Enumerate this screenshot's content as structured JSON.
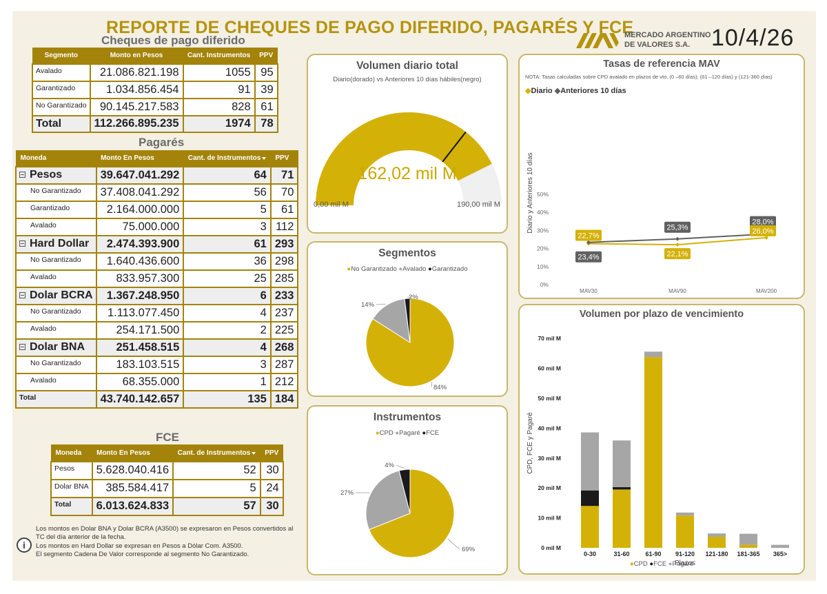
{
  "header": {
    "title": "REPORTE DE CHEQUES DE PAGO DIFERIDO, PAGARÉS Y FCE",
    "company_line1": "MERCADO ARGENTINO",
    "company_line2": "DE VALORES S.A.",
    "date": "10/4/26"
  },
  "cheques": {
    "title": "Cheques de pago diferido",
    "headers": [
      "Segmento",
      "Monto en Pesos",
      "Cant. Instrumentos",
      "PPV"
    ],
    "rows": [
      {
        "segmento": "Avalado",
        "monto": "21.086.821.198",
        "cant": "1055",
        "ppv": "95"
      },
      {
        "segmento": "Garantizado",
        "monto": "1.034.856.454",
        "cant": "91",
        "ppv": "39"
      },
      {
        "segmento": "No Garantizado",
        "monto": "90.145.217.583",
        "cant": "828",
        "ppv": "61"
      }
    ],
    "total": {
      "label": "Total",
      "monto": "112.266.895.235",
      "cant": "1974",
      "ppv": "78"
    }
  },
  "pagares": {
    "title": "Pagarés",
    "headers": [
      "Moneda",
      "Monto En Pesos",
      "Cant. de Instrumentos",
      "PPV"
    ],
    "groups": [
      {
        "name": "Pesos",
        "monto": "39.647.041.292",
        "cant": "64",
        "ppv": "71",
        "rows": [
          {
            "label": "No Garantizado",
            "monto": "37.408.041.292",
            "cant": "56",
            "ppv": "70"
          },
          {
            "label": "Garantizado",
            "monto": "2.164.000.000",
            "cant": "5",
            "ppv": "61"
          },
          {
            "label": "Avalado",
            "monto": "75.000.000",
            "cant": "3",
            "ppv": "112"
          }
        ]
      },
      {
        "name": "Hard Dollar",
        "monto": "2.474.393.900",
        "cant": "61",
        "ppv": "293",
        "rows": [
          {
            "label": "No Garantizado",
            "monto": "1.640.436.600",
            "cant": "36",
            "ppv": "298"
          },
          {
            "label": "Avalado",
            "monto": "833.957.300",
            "cant": "25",
            "ppv": "285"
          }
        ]
      },
      {
        "name": "Dolar BCRA",
        "monto": "1.367.248.950",
        "cant": "6",
        "ppv": "233",
        "rows": [
          {
            "label": "No Garantizado",
            "monto": "1.113.077.450",
            "cant": "4",
            "ppv": "237"
          },
          {
            "label": "Avalado",
            "monto": "254.171.500",
            "cant": "2",
            "ppv": "225"
          }
        ]
      },
      {
        "name": "Dolar BNA",
        "monto": "251.458.515",
        "cant": "4",
        "ppv": "268",
        "rows": [
          {
            "label": "No Garantizado",
            "monto": "183.103.515",
            "cant": "3",
            "ppv": "287"
          },
          {
            "label": "Avalado",
            "monto": "68.355.000",
            "cant": "1",
            "ppv": "212"
          }
        ]
      }
    ],
    "total": {
      "label": "Total",
      "monto": "43.740.142.657",
      "cant": "135",
      "ppv": "184"
    }
  },
  "fce": {
    "title": "FCE",
    "headers": [
      "Moneda",
      "Monto En Pesos",
      "Cant. de Instrumentos",
      "PPV"
    ],
    "rows": [
      {
        "label": "Pesos",
        "monto": "5.628.040.416",
        "cant": "52",
        "ppv": "30"
      },
      {
        "label": "Dolar BNA",
        "monto": "385.584.417",
        "cant": "5",
        "ppv": "24"
      }
    ],
    "total": {
      "label": "Total",
      "monto": "6.013.624.833",
      "cant": "57",
      "ppv": "30"
    }
  },
  "notes": {
    "lines": [
      "Los montos en Dolar BNA y Dolar BCRA (A3500) se expresaron en Pesos convertidos al",
      "TC del día anterior de la fecha.",
      "Los montos en Hard Dollar se expresan en Pesos a Dólar Com. A3500.",
      "El segmento Cadena De Valor corresponde al segmento No Garantizado."
    ],
    "info_icon": "i"
  },
  "colors": {
    "gold": "#d4b106",
    "gray": "#a6a6a6",
    "black": "#1a1a1a",
    "dark_label": "#606060",
    "header_gold": "#a3830a"
  },
  "chart_data": [
    {
      "id": "volumen-diario",
      "type": "gauge",
      "title": "Volumen diario total",
      "subtitle": "Diario(dorado) vs Anteriores 10 días hábiles(negro)",
      "value": 162.02,
      "target": 135,
      "min": 0,
      "max": 190,
      "value_label": "162,02 mil M",
      "min_label": "0,00 mil M",
      "max_label": "190,00 mil M"
    },
    {
      "id": "segmentos",
      "type": "pie",
      "title": "Segmentos",
      "legend": [
        "No Garantizado",
        "Avalado",
        "Garantizado"
      ],
      "slices": [
        {
          "name": "No Garantizado",
          "value": 84,
          "label": "84%"
        },
        {
          "name": "Avalado",
          "value": 14,
          "label": "14%"
        },
        {
          "name": "Garantizado",
          "value": 2,
          "label": "2%"
        }
      ]
    },
    {
      "id": "instrumentos",
      "type": "pie",
      "title": "Instrumentos",
      "legend": [
        "CPD",
        "Pagaré",
        "FCE"
      ],
      "slices": [
        {
          "name": "CPD",
          "value": 69,
          "label": "69%"
        },
        {
          "name": "Pagaré",
          "value": 27,
          "label": "27%"
        },
        {
          "name": "FCE",
          "value": 4,
          "label": "4%"
        }
      ]
    },
    {
      "id": "tasas",
      "type": "line",
      "title": "Tasas de referencia MAV",
      "note": "NOTA: Tasas calculadas sobre CPD avalado en plazos de vto. (0 –60 días); (61 –120 días) y (121-360 días)",
      "categories": [
        "MAV30",
        "MAV90",
        "MAV200"
      ],
      "ylabel": "Diario y Anteriores 10 días",
      "yticks": [
        "0%",
        "10%",
        "20%",
        "30%",
        "40%",
        "50%"
      ],
      "ylim": [
        0,
        50
      ],
      "legend": "top-left",
      "series": [
        {
          "name": "Diario",
          "values": [
            22.7,
            22.1,
            26.0
          ],
          "labels": [
            "22,7%",
            "22,1%",
            "26,0%"
          ]
        },
        {
          "name": "Anteriores 10 días",
          "values": [
            23.4,
            25.3,
            28.0
          ],
          "labels": [
            "23,4%",
            "25,3%",
            "28,0%"
          ]
        }
      ]
    },
    {
      "id": "plazos",
      "type": "bar",
      "stacked": true,
      "title": "Volumen por plazo de vencimiento",
      "categories": [
        "0-30",
        "31-60",
        "61-90",
        "91-120",
        "121-180",
        "181-365",
        "365>"
      ],
      "xlabel": "Plazos",
      "ylabel": "CPD, FCE y Pagaré",
      "yticks": [
        "0 mil M",
        "10 mil M",
        "20 mil M",
        "30 mil M",
        "40 mil M",
        "50 mil M",
        "60 mil M",
        "70 mil M"
      ],
      "ylim": [
        0,
        70
      ],
      "legend_items": [
        "CPD",
        "FCE",
        "Pagaré"
      ],
      "series": [
        {
          "name": "CPD",
          "values": [
            14.0,
            19.5,
            63.8,
            10.8,
            3.7,
            1.0,
            0
          ]
        },
        {
          "name": "FCE",
          "values": [
            5.2,
            0.8,
            0,
            0,
            0,
            0,
            0
          ]
        },
        {
          "name": "Pagaré",
          "values": [
            19.4,
            15.6,
            1.8,
            1.0,
            1.1,
            3.7,
            1.0
          ]
        }
      ]
    }
  ]
}
